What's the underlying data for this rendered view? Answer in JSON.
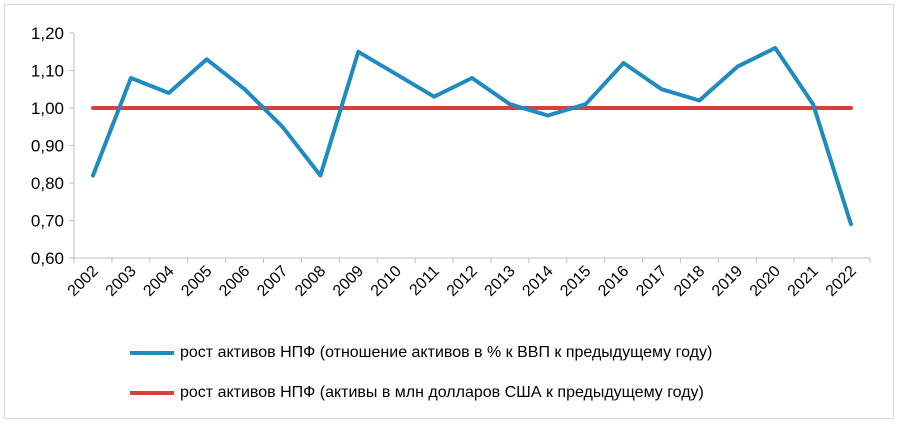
{
  "chart_data": {
    "type": "line",
    "title": "",
    "xlabel": "",
    "ylabel": "",
    "ylim": [
      0.6,
      1.2
    ],
    "y_ticks": [
      "0,60",
      "0,70",
      "0,80",
      "0,90",
      "1,00",
      "1,10",
      "1,20"
    ],
    "y_tick_values": [
      0.6,
      0.7,
      0.8,
      0.9,
      1.0,
      1.1,
      1.2
    ],
    "categories": [
      "2002",
      "2003",
      "2004",
      "2005",
      "2006",
      "2007",
      "2008",
      "2009",
      "2010",
      "2011",
      "2012",
      "2013",
      "2014",
      "2015",
      "2016",
      "2017",
      "2018",
      "2019",
      "2020",
      "2021",
      "2022"
    ],
    "grid": false,
    "legend_position": "bottom",
    "series": [
      {
        "name": "рост активов НПФ (отношение активов в % к ВВП к предыдущему году)",
        "color": "#1f8bc0",
        "values": [
          0.82,
          1.08,
          1.04,
          1.13,
          1.05,
          0.95,
          0.82,
          1.15,
          1.09,
          1.03,
          1.08,
          1.01,
          0.98,
          1.01,
          1.12,
          1.05,
          1.02,
          1.11,
          1.16,
          1.01,
          0.69
        ]
      },
      {
        "name": "рост активов НПФ (активы в млн долларов США к предыдущему году)",
        "color": "#d9403b",
        "values": [
          1.0,
          1.0,
          1.0,
          1.0,
          1.0,
          1.0,
          1.0,
          1.0,
          1.0,
          1.0,
          1.0,
          1.0,
          1.0,
          1.0,
          1.0,
          1.0,
          1.0,
          1.0,
          1.0,
          1.0,
          1.0
        ]
      }
    ]
  }
}
